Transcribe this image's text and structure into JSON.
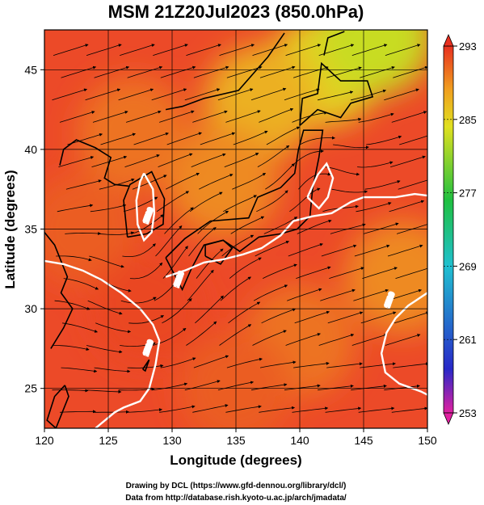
{
  "chart_data": {
    "type": "heatmap",
    "title": "MSM 21Z20Jul2023 (850.0hPa)",
    "xlabel": "Longitude (degrees)",
    "ylabel": "Latitude  (degrees)",
    "xlim": [
      120,
      150
    ],
    "ylim": [
      22.5,
      47.5
    ],
    "x_ticks": [
      "120",
      "125",
      "130",
      "135",
      "140",
      "145",
      "150"
    ],
    "y_ticks": [
      "25",
      "30",
      "35",
      "40",
      "45"
    ],
    "colorbar": {
      "min": 253,
      "max": 293,
      "ticks": [
        "253",
        "261",
        "269",
        "277",
        "285",
        "293"
      ],
      "colors": [
        "#e020a0",
        "#2020c0",
        "#20c0d0",
        "#20c040",
        "#e0e020",
        "#f0a020",
        "#e83020"
      ]
    },
    "temperature_field": {
      "regions": [
        {
          "lon": 142,
          "lat": 45,
          "value": 285
        },
        {
          "lon": 146,
          "lat": 47,
          "value": 283
        },
        {
          "lon": 137,
          "lat": 43,
          "value": 287
        },
        {
          "lon": 134,
          "lat": 38,
          "value": 289
        },
        {
          "lon": 127,
          "lat": 41,
          "value": 290
        },
        {
          "lon": 123,
          "lat": 35,
          "value": 291
        },
        {
          "lon": 128,
          "lat": 30,
          "value": 292
        },
        {
          "lon": 140,
          "lat": 28,
          "value": 290
        },
        {
          "lon": 148,
          "lat": 32,
          "value": 289
        },
        {
          "lon": 135,
          "lat": 25,
          "value": 291
        }
      ]
    },
    "contour_labels": [
      "1520",
      "1520",
      "1520",
      "1520"
    ]
  },
  "credits": {
    "line1": "Drawing by DCL (https://www.gfd-dennou.org/library/dcl/)",
    "line2": "Data from http://database.rish.kyoto-u.ac.jp/arch/jmadata/"
  }
}
